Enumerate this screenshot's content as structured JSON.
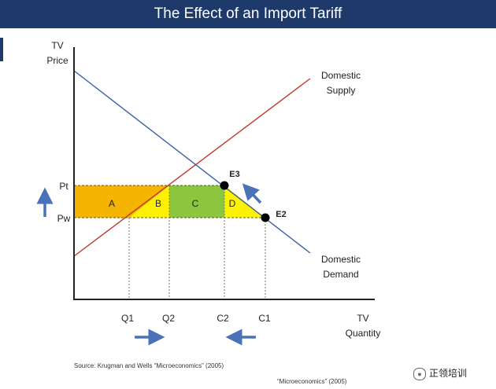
{
  "header": {
    "title": "The Effect of an Import Tariff"
  },
  "axes": {
    "y_label_line1": "TV",
    "y_label_line2": "Price",
    "x_label_line1": "TV",
    "x_label_line2": "Quantity"
  },
  "price_labels": {
    "pt": "Pt",
    "pw": "Pw"
  },
  "quantity_labels": {
    "q1": "Q1",
    "q2": "Q2",
    "c2": "C2",
    "c1": "C1"
  },
  "curves": {
    "supply_line1": "Domestic",
    "supply_line2": "Supply",
    "demand_line1": "Domestic",
    "demand_line2": "Demand"
  },
  "regions": {
    "a": "A",
    "b": "B",
    "c": "C",
    "d": "D"
  },
  "points": {
    "e3": "E3",
    "e2": "E2"
  },
  "source": {
    "line1": "Source:  Krugman and Wells “Microeconomics” (2005)",
    "line2": "“Microeconomics” (2005)"
  },
  "watermark": {
    "text": "正领培训"
  },
  "colors": {
    "header": "#1e3a6b",
    "supply": "#c0362c",
    "demand": "#3a5fa8",
    "region_a": "#f4b400",
    "region_b": "#fff200",
    "region_c": "#8cc63f",
    "region_d": "#fff200",
    "arrow": "#4a72b8"
  }
}
